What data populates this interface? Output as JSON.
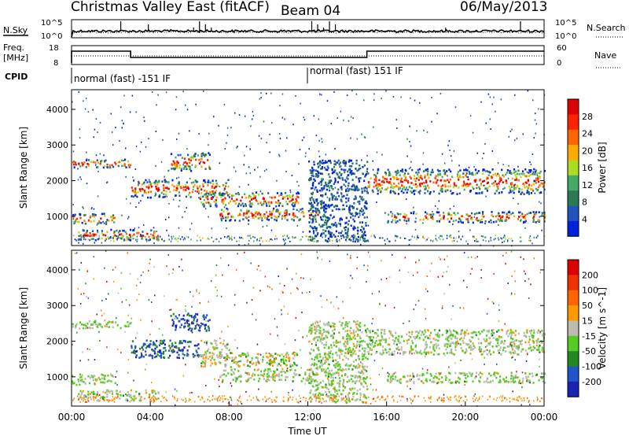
{
  "header": {
    "title": "Christmas Valley East (fitACF)",
    "beam": "Beam 04",
    "date": "06/May/2013"
  },
  "panel_labels": {
    "nsky": "N.Sky",
    "nsearch": "N.Search",
    "freq_line1": "Freq.",
    "freq_line2": "[MHz]",
    "nave": "Nave",
    "cpid": "CPID",
    "log_hi": "10^5",
    "log_lo": "10^0",
    "freq_hi": "18",
    "freq_lo": "8",
    "nave_hi": "60",
    "nave_lo": "0"
  },
  "cpid_modes": [
    "normal (fast) -151 IF",
    "normal (fast) 151 IF"
  ],
  "colors": {
    "power_scale": [
      "#0022dd",
      "#2255bb",
      "#2a7a55",
      "#44aa66",
      "#aadd22",
      "#ffaa00",
      "#ff6600",
      "#ff2200",
      "#dd0000"
    ],
    "velocity_scale": [
      "#1a22b0",
      "#2255cc",
      "#228822",
      "#55cc22",
      "#bbbbb0",
      "#ff9900",
      "#ff6600",
      "#ee3300",
      "#dd0000"
    ]
  },
  "chart_data": [
    {
      "type": "heatmap",
      "name": "power",
      "xlabel": "",
      "ylabel": "Slant Range [km]",
      "xlim": [
        "00:00",
        "24:00"
      ],
      "ylim": [
        180,
        4550
      ],
      "yticks": [
        "1000",
        "2000",
        "3000",
        "4000"
      ],
      "colorbar_label": "Power [dB]",
      "colorbar_ticks": [
        "4",
        "8",
        "12",
        "16",
        "20",
        "24",
        "28"
      ],
      "bands": [
        {
          "t0": 0.0,
          "t1": 3.0,
          "r0": 2380,
          "r1": 2620
        },
        {
          "t0": 0.0,
          "t1": 2.2,
          "r0": 800,
          "r1": 1100
        },
        {
          "t0": 0.3,
          "t1": 4.5,
          "r0": 350,
          "r1": 650
        },
        {
          "t0": 3.0,
          "t1": 8.0,
          "r0": 1550,
          "r1": 2050
        },
        {
          "t0": 5.0,
          "t1": 7.0,
          "r0": 2300,
          "r1": 2800
        },
        {
          "t0": 6.5,
          "t1": 11.5,
          "r0": 1300,
          "r1": 1700
        },
        {
          "t0": 7.5,
          "t1": 12.5,
          "r0": 900,
          "r1": 1250
        },
        {
          "t0": 15.0,
          "t1": 24.0,
          "r0": 1650,
          "r1": 2350
        },
        {
          "t0": 16.0,
          "t1": 24.0,
          "r0": 850,
          "r1": 1150
        },
        {
          "t0": 12.0,
          "t1": 15.0,
          "r0": 300,
          "r1": 2600
        }
      ]
    },
    {
      "type": "heatmap",
      "name": "velocity",
      "xlabel": "Time UT",
      "ylabel": "Slant Range [km]",
      "xlim": [
        "00:00",
        "24:00"
      ],
      "ylim": [
        180,
        4550
      ],
      "xticks": [
        "00:00",
        "04:00",
        "08:00",
        "12:00",
        "16:00",
        "20:00",
        "00:00"
      ],
      "yticks": [
        "1000",
        "2000",
        "3000",
        "4000"
      ],
      "colorbar_label": "Velocity [m s^-1]",
      "colorbar_ticks": [
        "200",
        "100",
        "50",
        "15",
        "-15",
        "-50",
        "-100",
        "-200"
      ]
    }
  ]
}
